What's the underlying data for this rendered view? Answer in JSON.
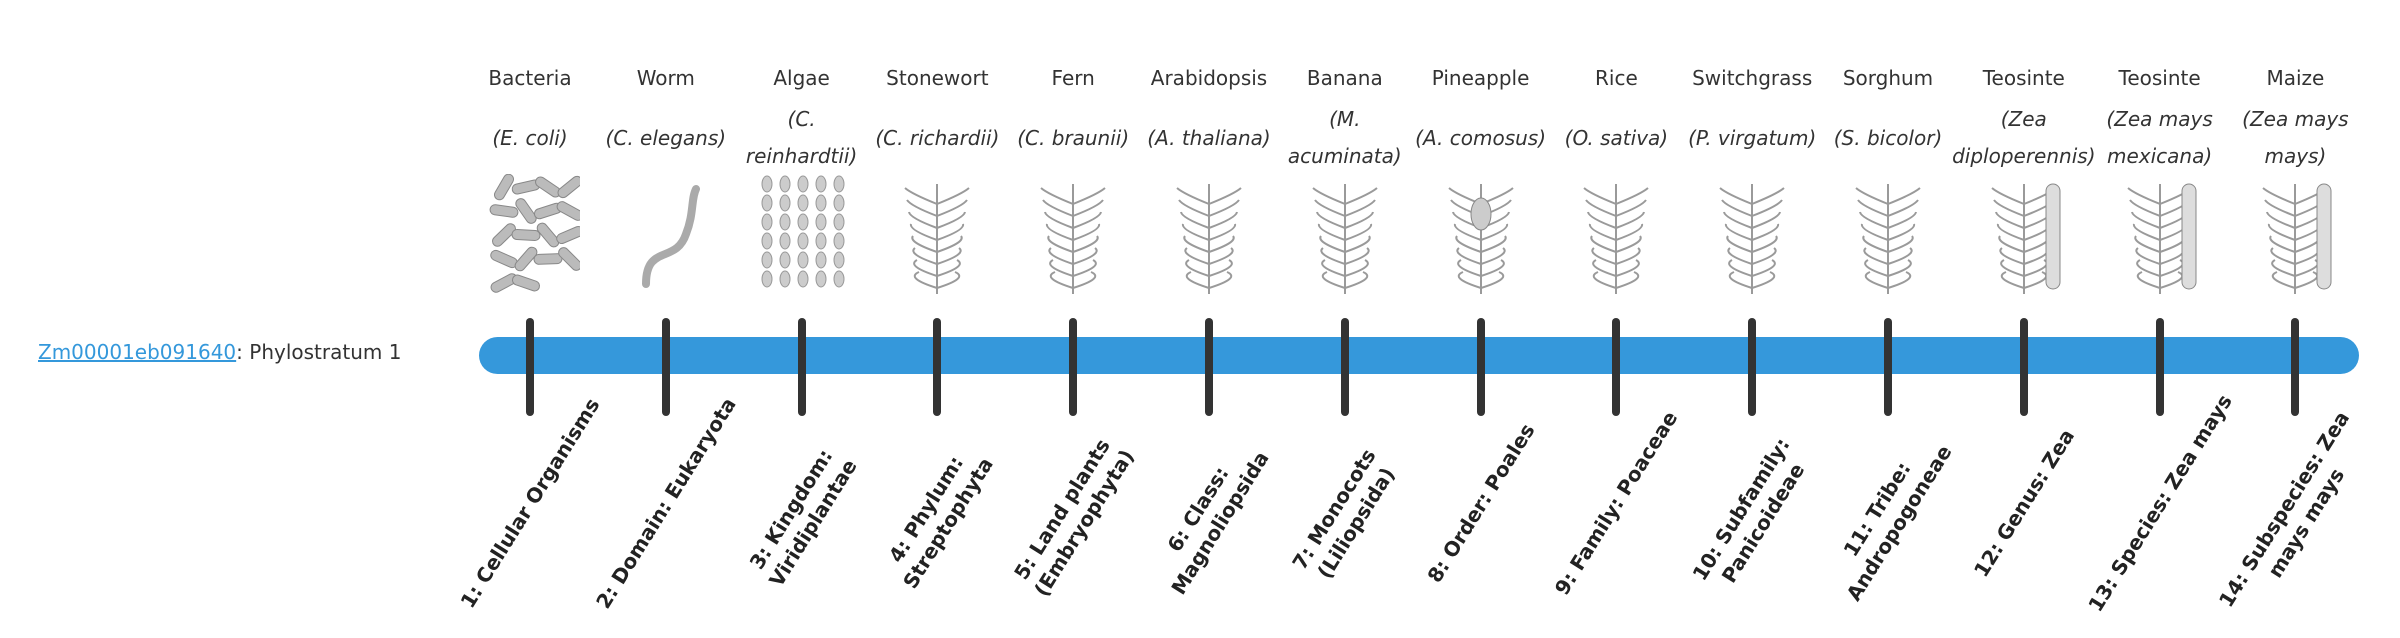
{
  "gene": {
    "id": "Zm00001eb091640",
    "suffix": ": Phylostratum 1"
  },
  "colors": {
    "bar": "#3598db",
    "tick": "#333333",
    "link": "#3498db"
  },
  "strata": [
    {
      "common": "Bacteria",
      "latin": "(E. coli)",
      "rank": "1: Cellular Organisms",
      "icon": "bacteria"
    },
    {
      "common": "Worm",
      "latin": "(C. elegans)",
      "rank": "2: Domain: Eukaryota",
      "icon": "worm"
    },
    {
      "common": "Algae",
      "latin": "(C. reinhardtii)",
      "rank": "3: Kingdom: Viridiplantae",
      "icon": "algae"
    },
    {
      "common": "Stonewort",
      "latin": "(C. richardii)",
      "rank": "4: Phylum: Streptophyta",
      "icon": "stonewort"
    },
    {
      "common": "Fern",
      "latin": "(C. braunii)",
      "rank": "5: Land plants (Embryophyta)",
      "icon": "fern"
    },
    {
      "common": "Arabidopsis",
      "latin": "(A. thaliana)",
      "rank": "6: Class: Magnoliopsida",
      "icon": "arabidopsis"
    },
    {
      "common": "Banana",
      "latin": "(M. acuminata)",
      "rank": "7: Monocots (Liliopsida)",
      "icon": "banana"
    },
    {
      "common": "Pineapple",
      "latin": "(A. comosus)",
      "rank": "8: Order: Poales",
      "icon": "pineapple"
    },
    {
      "common": "Rice",
      "latin": "(O. sativa)",
      "rank": "9: Family: Poaceae",
      "icon": "rice"
    },
    {
      "common": "Switchgrass",
      "latin": "(P. virgatum)",
      "rank": "10: Subfamily: Panicoideae",
      "icon": "switchgrass"
    },
    {
      "common": "Sorghum",
      "latin": "(S. bicolor)",
      "rank": "11: Tribe: Andropogoneae",
      "icon": "sorghum"
    },
    {
      "common": "Teosinte",
      "latin": "(Zea diploperennis)",
      "rank": "12: Genus: Zea",
      "icon": "teosinte"
    },
    {
      "common": "Teosinte",
      "latin": "(Zea mays mexicana)",
      "rank": "13: Species: Zea mays",
      "icon": "teosinte-mexicana"
    },
    {
      "common": "Maize",
      "latin": "(Zea mays mays)",
      "rank": "14: Subspecies: Zea mays mays",
      "icon": "maize"
    }
  ]
}
